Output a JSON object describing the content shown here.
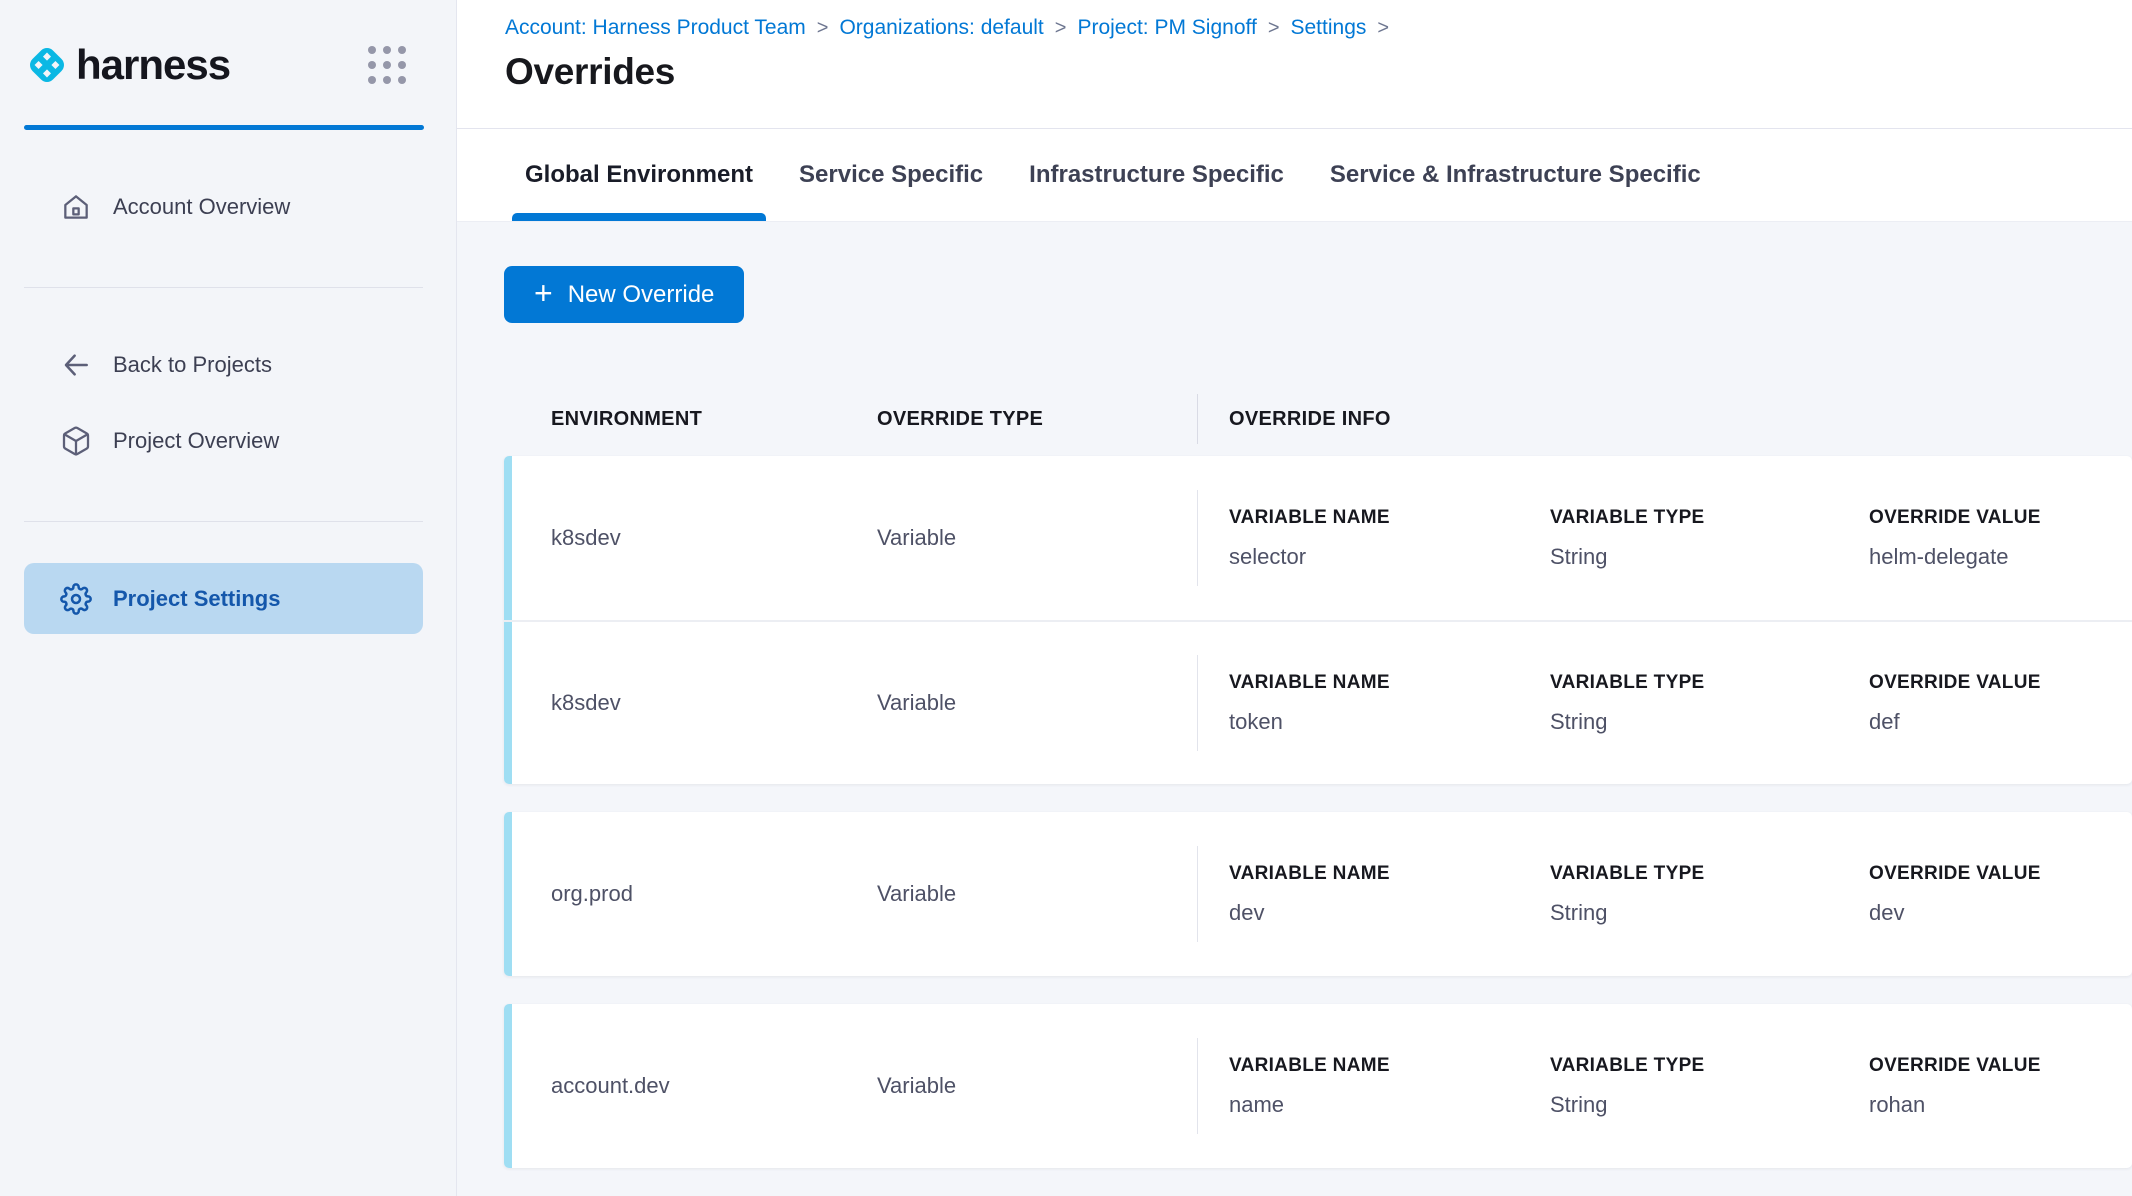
{
  "sidebar": {
    "brand": "harness",
    "items": [
      {
        "label": "Account Overview",
        "icon": "home-icon",
        "active": false
      },
      {
        "label": "Back to Projects",
        "icon": "arrow-left-icon",
        "active": false
      },
      {
        "label": "Project Overview",
        "icon": "cube-icon",
        "active": false
      },
      {
        "label": "Project Settings",
        "icon": "gear-icon",
        "active": true
      }
    ]
  },
  "breadcrumb": {
    "items": [
      "Account: Harness Product Team",
      "Organizations: default",
      "Project: PM Signoff",
      "Settings"
    ],
    "separator": ">"
  },
  "page": {
    "title": "Overrides"
  },
  "tabs": [
    {
      "label": "Global Environment",
      "active": true
    },
    {
      "label": "Service Specific",
      "active": false
    },
    {
      "label": "Infrastructure Specific",
      "active": false
    },
    {
      "label": "Service & Infrastructure Specific",
      "active": false
    }
  ],
  "toolbar": {
    "new_override_label": "New Override",
    "plus_glyph": "+"
  },
  "table": {
    "columns": [
      "ENVIRONMENT",
      "OVERRIDE TYPE",
      "OVERRIDE INFO"
    ],
    "info_columns": [
      "VARIABLE NAME",
      "VARIABLE TYPE",
      "OVERRIDE VALUE"
    ],
    "groups": [
      {
        "rows": [
          {
            "environment": "k8sdev",
            "override_type": "Variable",
            "variable_name": "selector",
            "variable_type": "String",
            "override_value": "helm-delegate"
          },
          {
            "environment": "k8sdev",
            "override_type": "Variable",
            "variable_name": "token",
            "variable_type": "String",
            "override_value": "def"
          }
        ]
      },
      {
        "rows": [
          {
            "environment": "org.prod",
            "override_type": "Variable",
            "variable_name": "dev",
            "variable_type": "String",
            "override_value": "dev"
          }
        ]
      },
      {
        "rows": [
          {
            "environment": "account.dev",
            "override_type": "Variable",
            "variable_name": "name",
            "variable_type": "String",
            "override_value": "rohan"
          }
        ]
      }
    ]
  },
  "colors": {
    "primary_blue": "#0278d5",
    "breadcrumb_link": "#0278d5",
    "logo_cyan": "#0bb8e4",
    "row_stripe_cyan": "#9fdef3",
    "active_nav_bg": "#b9d8f1",
    "active_nav_text": "#1457ab",
    "sidebar_bg": "#f3f5f9",
    "content_bg": "#f4f6fa",
    "card_bg": "#ffffff"
  }
}
